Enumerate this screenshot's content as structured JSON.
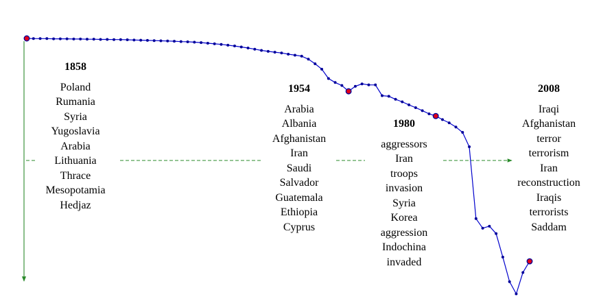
{
  "chart_data": {
    "type": "line",
    "x": [
      1858,
      1860,
      1862,
      1864,
      1866,
      1868,
      1870,
      1872,
      1874,
      1876,
      1878,
      1880,
      1882,
      1884,
      1886,
      1888,
      1890,
      1892,
      1894,
      1896,
      1898,
      1900,
      1902,
      1904,
      1906,
      1908,
      1910,
      1912,
      1914,
      1916,
      1918,
      1920,
      1922,
      1924,
      1926,
      1928,
      1930,
      1932,
      1934,
      1936,
      1938,
      1940,
      1942,
      1944,
      1946,
      1948,
      1950,
      1952,
      1954,
      1956,
      1958,
      1960,
      1962,
      1964,
      1966,
      1968,
      1970,
      1972,
      1974,
      1976,
      1978,
      1980,
      1982,
      1984,
      1986,
      1988,
      1990,
      1992,
      1994,
      1996,
      1998,
      2000,
      2002,
      2004,
      2006,
      2008
    ],
    "y": [
      1.0,
      0.999,
      0.999,
      0.999,
      0.998,
      0.998,
      0.998,
      0.997,
      0.997,
      0.996,
      0.996,
      0.995,
      0.995,
      0.994,
      0.994,
      0.993,
      0.992,
      0.991,
      0.99,
      0.989,
      0.988,
      0.987,
      0.986,
      0.984,
      0.983,
      0.981,
      0.979,
      0.976,
      0.973,
      0.97,
      0.966,
      0.962,
      0.957,
      0.952,
      0.946,
      0.94,
      0.935,
      0.931,
      0.927,
      0.921,
      0.916,
      0.911,
      0.896,
      0.873,
      0.846,
      0.799,
      0.779,
      0.764,
      0.735,
      0.76,
      0.772,
      0.767,
      0.767,
      0.713,
      0.71,
      0.695,
      0.682,
      0.667,
      0.653,
      0.638,
      0.622,
      0.611,
      0.593,
      0.577,
      0.556,
      0.529,
      0.457,
      0.097,
      0.049,
      0.059,
      0.022,
      -0.096,
      -0.219,
      -0.28,
      -0.173,
      -0.117
    ],
    "highlights": [
      1858,
      1954,
      1980,
      2008
    ],
    "line_color": "#0000cc",
    "marker_color": "#000099",
    "highlight_color": "#e0001a",
    "arrow_color": "#2a8a2a"
  },
  "columns": [
    {
      "year": "1858",
      "words": [
        "Poland",
        "Rumania",
        "Syria",
        "Yugoslavia",
        "Arabia",
        "Lithuania",
        "Thrace",
        "Mesopotamia",
        "Hedjaz"
      ]
    },
    {
      "year": "1954",
      "words": [
        "Arabia",
        "Albania",
        "Afghanistan",
        "Iran",
        "Saudi",
        "Salvador",
        "Guatemala",
        "Ethiopia",
        "Cyprus"
      ]
    },
    {
      "year": "1980",
      "words": [
        "aggressors",
        "Iran",
        "troops",
        "invasion",
        "Syria",
        "Korea",
        "aggression",
        "Indochina",
        "invaded"
      ]
    },
    {
      "year": "2008",
      "words": [
        "Iraqi",
        "Afghanistan",
        "terror",
        "terrorism",
        "Iran",
        "reconstruction",
        "Iraqis",
        "terrorists",
        "Saddam"
      ]
    }
  ]
}
